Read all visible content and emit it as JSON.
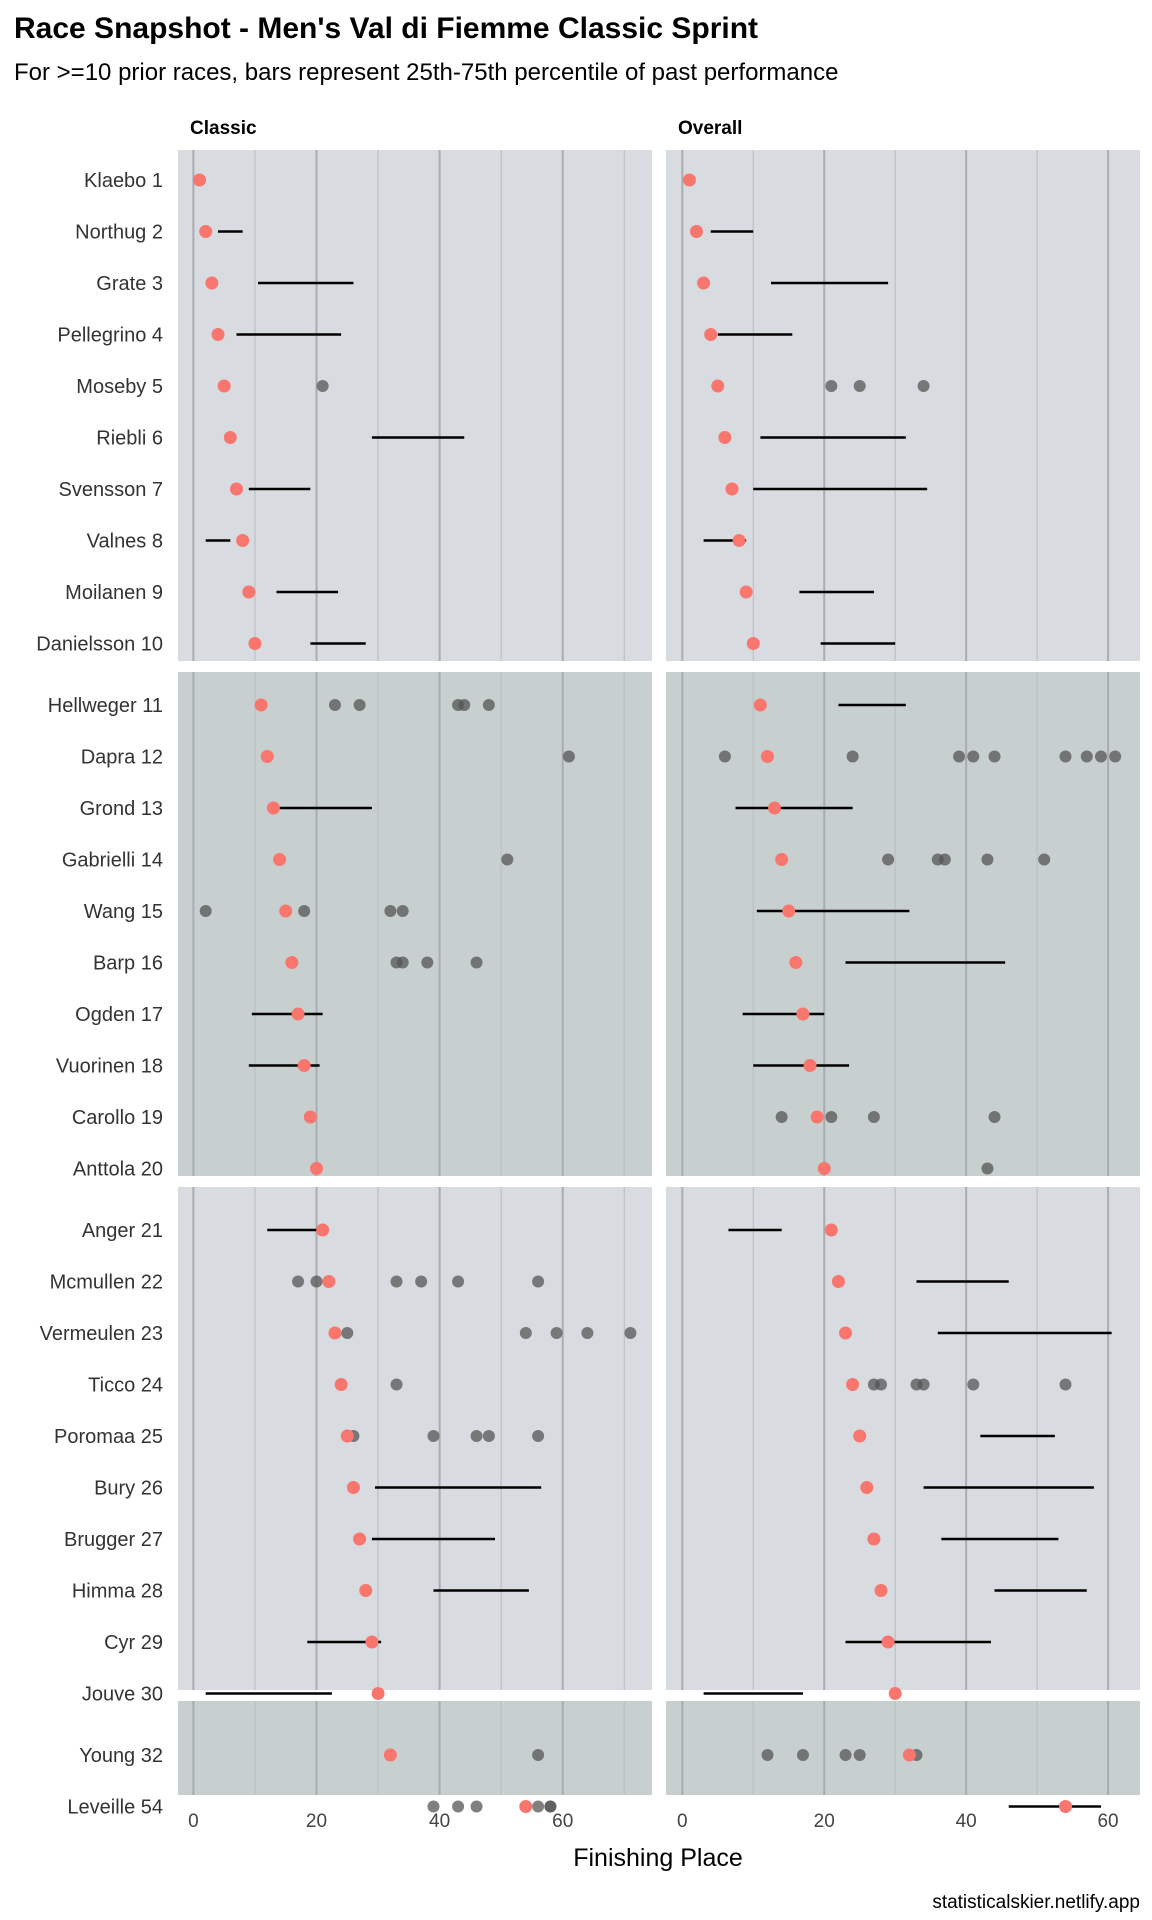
{
  "chart_data": {
    "type": "scatter",
    "title": "Race Snapshot -  Men's Val di Fiemme Classic Sprint",
    "subtitle": "For >=10 prior races, bars represent 25th-75th percentile of past performance",
    "xlabel": "Finishing Place",
    "caption": "statisticalskier.netlify.app",
    "x_ticks": [
      "0",
      "20",
      "40",
      "60"
    ],
    "grid": true,
    "colors": {
      "panel_light": "#d8dbe0",
      "panel_dark": "#c8cfcf",
      "current_place": "#f8766d",
      "past_point": "#555555",
      "range_bar": "#000000"
    },
    "panels": [
      {
        "name": "Classic",
        "xlim": [
          -2.5,
          74.5
        ],
        "athletes": [
          {
            "label": "Klaebo 1",
            "place": 1,
            "range": null,
            "points": []
          },
          {
            "label": "Northug 2",
            "place": 2,
            "range": [
              4,
              8
            ],
            "points": []
          },
          {
            "label": "Grate 3",
            "place": 3,
            "range": [
              10.5,
              26
            ],
            "points": []
          },
          {
            "label": "Pellegrino 4",
            "place": 4,
            "range": [
              7,
              24
            ],
            "points": []
          },
          {
            "label": "Moseby 5",
            "place": 5,
            "range": null,
            "points": [
              21
            ]
          },
          {
            "label": "Riebli 6",
            "place": 6,
            "range": [
              29,
              44
            ],
            "points": []
          },
          {
            "label": "Svensson 7",
            "place": 7,
            "range": [
              9,
              19
            ],
            "points": []
          },
          {
            "label": "Valnes 8",
            "place": 8,
            "range": [
              2,
              6
            ],
            "points": []
          },
          {
            "label": "Moilanen 9",
            "place": 9,
            "range": [
              13.5,
              23.5
            ],
            "points": []
          },
          {
            "label": "Danielsson 10",
            "place": 10,
            "range": [
              19,
              28
            ],
            "points": []
          },
          {
            "label": "Hellweger 11",
            "place": 11,
            "range": null,
            "points": [
              23,
              27,
              43,
              44,
              48
            ]
          },
          {
            "label": "Dapra 12",
            "place": 12,
            "range": null,
            "points": [
              61
            ]
          },
          {
            "label": "Grond 13",
            "place": 13,
            "range": [
              13,
              29
            ],
            "points": []
          },
          {
            "label": "Gabrielli 14",
            "place": 14,
            "range": null,
            "points": [
              51
            ]
          },
          {
            "label": "Wang 15",
            "place": 15,
            "range": null,
            "points": [
              2,
              18,
              32,
              34
            ]
          },
          {
            "label": "Barp 16",
            "place": 16,
            "range": null,
            "points": [
              33,
              34,
              38,
              46
            ]
          },
          {
            "label": "Ogden 17",
            "place": 17,
            "range": [
              9.5,
              21
            ],
            "points": []
          },
          {
            "label": "Vuorinen 18",
            "place": 18,
            "range": [
              9,
              20.5
            ],
            "points": []
          },
          {
            "label": "Carollo 19",
            "place": 19,
            "range": null,
            "points": []
          },
          {
            "label": "Anttola 20",
            "place": 20,
            "range": null,
            "points": []
          },
          {
            "label": "Anger 21",
            "place": 21,
            "range": [
              12,
              20
            ],
            "points": []
          },
          {
            "label": "Mcmullen 22",
            "place": 22,
            "range": null,
            "points": [
              17,
              20,
              33,
              37,
              43,
              56
            ]
          },
          {
            "label": "Vermeulen 23",
            "place": 23,
            "range": null,
            "points": [
              25,
              54,
              59,
              64,
              71
            ]
          },
          {
            "label": "Ticco 24",
            "place": 24,
            "range": null,
            "points": [
              33
            ]
          },
          {
            "label": "Poromaa 25",
            "place": 25,
            "range": null,
            "points": [
              26,
              39,
              46,
              48,
              56
            ]
          },
          {
            "label": "Bury 26",
            "place": 26,
            "range": [
              29.5,
              56.5
            ],
            "points": []
          },
          {
            "label": "Brugger 27",
            "place": 27,
            "range": [
              29,
              49
            ],
            "points": []
          },
          {
            "label": "Himma 28",
            "place": 28,
            "range": [
              39,
              54.5
            ],
            "points": []
          },
          {
            "label": "Cyr 29",
            "place": 29,
            "range": [
              18.5,
              30.5
            ],
            "points": []
          },
          {
            "label": "Jouve 30",
            "place": 30,
            "range": [
              2,
              22.5
            ],
            "points": []
          },
          {
            "label": "Young 32",
            "place": 32,
            "range": null,
            "points": [
              56
            ]
          },
          {
            "label": "Leveille 54",
            "place": 54,
            "range": null,
            "points": [
              39,
              43,
              46,
              56,
              58,
              58
            ]
          }
        ]
      },
      {
        "name": "Overall",
        "xlim": [
          -2.3,
          64.5
        ],
        "athletes": [
          {
            "label": "Klaebo 1",
            "place": 1,
            "range": null,
            "points": []
          },
          {
            "label": "Northug 2",
            "place": 2,
            "range": [
              4,
              10
            ],
            "points": []
          },
          {
            "label": "Grate 3",
            "place": 3,
            "range": [
              12.5,
              29
            ],
            "points": []
          },
          {
            "label": "Pellegrino 4",
            "place": 4,
            "range": [
              5,
              15.5
            ],
            "points": []
          },
          {
            "label": "Moseby 5",
            "place": 5,
            "range": null,
            "points": [
              21,
              25,
              34
            ]
          },
          {
            "label": "Riebli 6",
            "place": 6,
            "range": [
              11,
              31.5
            ],
            "points": []
          },
          {
            "label": "Svensson 7",
            "place": 7,
            "range": [
              10,
              34.5
            ],
            "points": []
          },
          {
            "label": "Valnes 8",
            "place": 8,
            "range": [
              3,
              9
            ],
            "points": []
          },
          {
            "label": "Moilanen 9",
            "place": 9,
            "range": [
              16.5,
              27
            ],
            "points": []
          },
          {
            "label": "Danielsson 10",
            "place": 10,
            "range": [
              19.5,
              30
            ],
            "points": []
          },
          {
            "label": "Hellweger 11",
            "place": 11,
            "range": [
              22,
              31.5
            ],
            "points": []
          },
          {
            "label": "Dapra 12",
            "place": 12,
            "range": null,
            "points": [
              6,
              24,
              39,
              41,
              44,
              54,
              57,
              59,
              61
            ]
          },
          {
            "label": "Grond 13",
            "place": 13,
            "range": [
              7.5,
              24
            ],
            "points": []
          },
          {
            "label": "Gabrielli 14",
            "place": 14,
            "range": null,
            "points": [
              29,
              36,
              37,
              43,
              51
            ]
          },
          {
            "label": "Wang 15",
            "place": 15,
            "range": [
              10.5,
              32
            ],
            "points": []
          },
          {
            "label": "Barp 16",
            "place": 16,
            "range": [
              23,
              45.5
            ],
            "points": []
          },
          {
            "label": "Ogden 17",
            "place": 17,
            "range": [
              8.5,
              20
            ],
            "points": []
          },
          {
            "label": "Vuorinen 18",
            "place": 18,
            "range": [
              10,
              23.5
            ],
            "points": []
          },
          {
            "label": "Carollo 19",
            "place": 19,
            "range": null,
            "points": [
              14,
              21,
              27,
              44
            ]
          },
          {
            "label": "Anttola 20",
            "place": 20,
            "range": null,
            "points": [
              43
            ]
          },
          {
            "label": "Anger 21",
            "place": 21,
            "range": [
              6.5,
              14
            ],
            "points": []
          },
          {
            "label": "Mcmullen 22",
            "place": 22,
            "range": [
              33,
              46
            ],
            "points": []
          },
          {
            "label": "Vermeulen 23",
            "place": 23,
            "range": [
              36,
              60.5
            ],
            "points": []
          },
          {
            "label": "Ticco 24",
            "place": 24,
            "range": null,
            "points": [
              27,
              28,
              33,
              34,
              41,
              54
            ]
          },
          {
            "label": "Poromaa 25",
            "place": 25,
            "range": [
              42,
              52.5
            ],
            "points": []
          },
          {
            "label": "Bury 26",
            "place": 26,
            "range": [
              34,
              58
            ],
            "points": []
          },
          {
            "label": "Brugger 27",
            "place": 27,
            "range": [
              36.5,
              53
            ],
            "points": []
          },
          {
            "label": "Himma 28",
            "place": 28,
            "range": [
              44,
              57
            ],
            "points": []
          },
          {
            "label": "Cyr 29",
            "place": 29,
            "range": [
              23,
              43.5
            ],
            "points": []
          },
          {
            "label": "Jouve 30",
            "place": 30,
            "range": [
              3,
              17
            ],
            "points": []
          },
          {
            "label": "Young 32",
            "place": 32,
            "range": null,
            "points": [
              12,
              17,
              23,
              25,
              33
            ]
          },
          {
            "label": "Leveille 54",
            "place": 54,
            "range": [
              46,
              59
            ],
            "points": []
          }
        ]
      }
    ]
  }
}
